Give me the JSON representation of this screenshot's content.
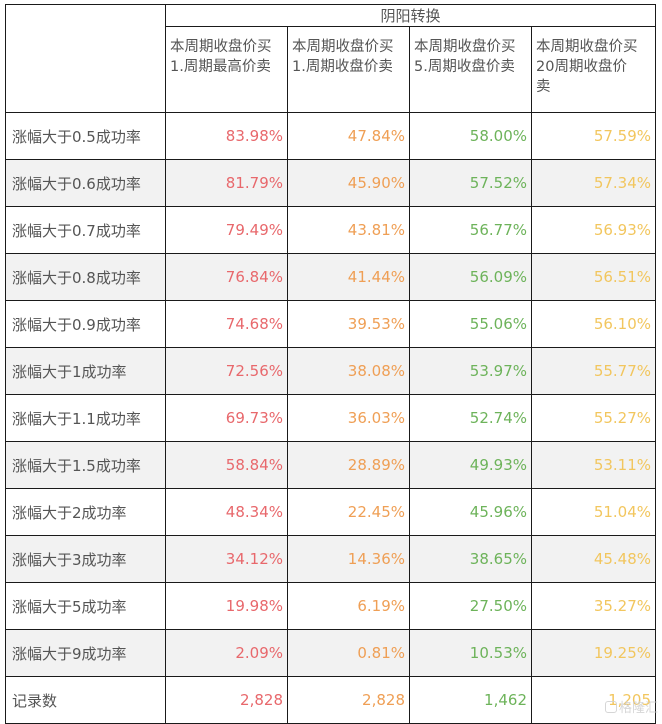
{
  "table": {
    "group_header": "阴阳转换",
    "column_headers": [
      [
        "本周期收盘价买",
        "1.周期最高价卖"
      ],
      [
        "本周期收盘价买",
        "1.周期收盘价卖"
      ],
      [
        "本周期收盘价买",
        "5.周期收盘价卖"
      ],
      [
        "本周期收盘价买",
        "20周期收盘价",
        "卖"
      ]
    ],
    "column_colors": [
      "#e8686c",
      "#ef9f55",
      "#6db35a",
      "#f2c65e"
    ],
    "rows": [
      {
        "label": "涨幅大于0.5成功率",
        "values": [
          "83.98%",
          "47.84%",
          "58.00%",
          "57.59%"
        ]
      },
      {
        "label": "涨幅大于0.6成功率",
        "values": [
          "81.79%",
          "45.90%",
          "57.52%",
          "57.34%"
        ]
      },
      {
        "label": "涨幅大于0.7成功率",
        "values": [
          "79.49%",
          "43.81%",
          "56.77%",
          "56.93%"
        ]
      },
      {
        "label": "涨幅大于0.8成功率",
        "values": [
          "76.84%",
          "41.44%",
          "56.09%",
          "56.51%"
        ]
      },
      {
        "label": "涨幅大于0.9成功率",
        "values": [
          "74.68%",
          "39.53%",
          "55.06%",
          "56.10%"
        ]
      },
      {
        "label": "涨幅大于1成功率",
        "values": [
          "72.56%",
          "38.08%",
          "53.97%",
          "55.77%"
        ]
      },
      {
        "label": "涨幅大于1.1成功率",
        "values": [
          "69.73%",
          "36.03%",
          "52.74%",
          "55.27%"
        ]
      },
      {
        "label": "涨幅大于1.5成功率",
        "values": [
          "58.84%",
          "28.89%",
          "49.93%",
          "53.11%"
        ]
      },
      {
        "label": "涨幅大于2成功率",
        "values": [
          "48.34%",
          "22.45%",
          "45.96%",
          "51.04%"
        ]
      },
      {
        "label": "涨幅大于3成功率",
        "values": [
          "34.12%",
          "14.36%",
          "38.65%",
          "45.48%"
        ]
      },
      {
        "label": "涨幅大于5成功率",
        "values": [
          "19.98%",
          "6.19%",
          "27.50%",
          "35.27%"
        ]
      },
      {
        "label": "涨幅大于9成功率",
        "values": [
          "2.09%",
          "0.81%",
          "10.53%",
          "19.25%"
        ]
      },
      {
        "label": "记录数",
        "values": [
          "2,828",
          "2,828",
          "1,462",
          "1,205"
        ]
      }
    ]
  },
  "watermark": {
    "text": "格隆汇"
  }
}
